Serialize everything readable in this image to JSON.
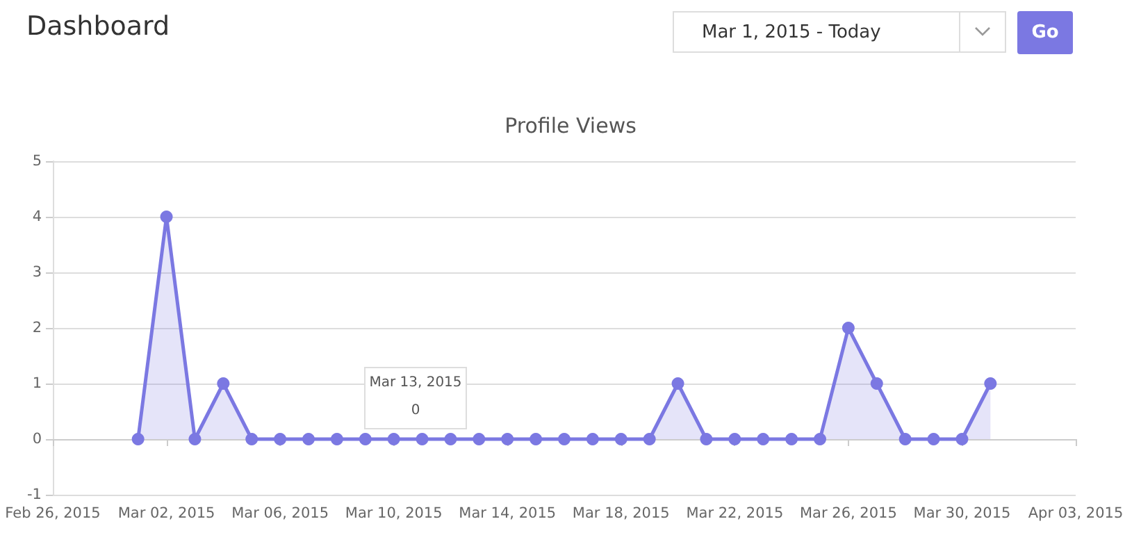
{
  "chart_data": {
    "type": "area",
    "title": "Profile Views",
    "annotations": [
      "Dashboard",
      "Mar 1, 2015 - Today",
      "Go",
      "Mar 13, 2015",
      "0"
    ],
    "x": [
      "2015-03-01",
      "2015-03-02",
      "2015-03-03",
      "2015-03-04",
      "2015-03-05",
      "2015-03-06",
      "2015-03-07",
      "2015-03-08",
      "2015-03-09",
      "2015-03-10",
      "2015-03-11",
      "2015-03-12",
      "2015-03-13",
      "2015-03-14",
      "2015-03-15",
      "2015-03-16",
      "2015-03-17",
      "2015-03-18",
      "2015-03-19",
      "2015-03-20",
      "2015-03-21",
      "2015-03-22",
      "2015-03-23",
      "2015-03-24",
      "2015-03-25",
      "2015-03-26",
      "2015-03-27",
      "2015-03-28",
      "2015-03-29",
      "2015-03-30",
      "2015-03-31"
    ],
    "series": [
      {
        "color": "#7b78e2",
        "values": [
          0,
          4,
          0,
          1,
          0,
          0,
          0,
          0,
          0,
          0,
          0,
          0,
          0,
          0,
          0,
          0,
          0,
          0,
          0,
          1,
          0,
          0,
          0,
          0,
          0,
          2,
          1,
          0,
          0,
          0,
          1
        ]
      }
    ],
    "xlim": [
      "2015-02-26",
      "2015-04-03"
    ],
    "xticks": [
      {
        "value": "2015-02-26",
        "label": "Feb 26, 2015"
      },
      {
        "value": "2015-03-02",
        "label": "Mar 02, 2015"
      },
      {
        "value": "2015-03-06",
        "label": "Mar 06, 2015"
      },
      {
        "value": "2015-03-10",
        "label": "Mar 10, 2015"
      },
      {
        "value": "2015-03-14",
        "label": "Mar 14, 2015"
      },
      {
        "value": "2015-03-18",
        "label": "Mar 18, 2015"
      },
      {
        "value": "2015-03-22",
        "label": "Mar 22, 2015"
      },
      {
        "value": "2015-03-26",
        "label": "Mar 26, 2015"
      },
      {
        "value": "2015-03-30",
        "label": "Mar 30, 2015"
      },
      {
        "value": "2015-04-03",
        "label": "Apr 03, 2015"
      }
    ],
    "ylim": [
      -1,
      5
    ],
    "yticks": [
      -1,
      0,
      1,
      2,
      3,
      4,
      5
    ],
    "grid": "y",
    "marker": "circle",
    "line_style": "solid"
  }
}
